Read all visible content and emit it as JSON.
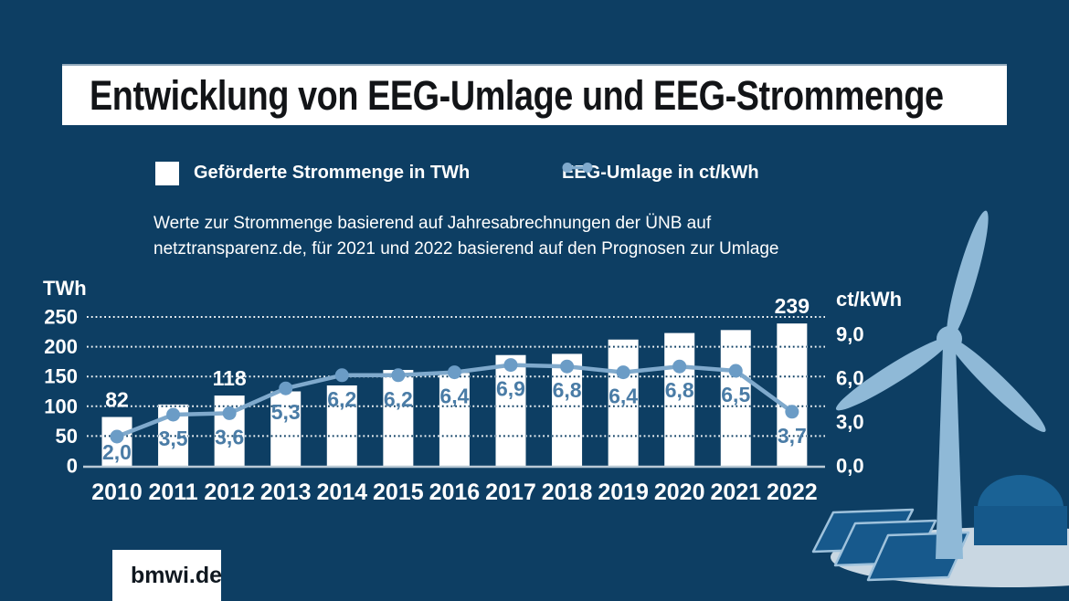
{
  "title": "Entwicklung von EEG-Umlage und EEG-Strommenge",
  "legend": [
    {
      "label": "Geförderte Strommenge in TWh",
      "swatch": "white-square"
    },
    {
      "label": "EEG-Umlage in ct/kWh",
      "swatch": "line-with-dots"
    }
  ],
  "note": {
    "line1": "Werte zur Strommenge basierend auf Jahresabrechnungen der ÜNB auf",
    "line2": "netztransparenz.de, für 2021 und 2022 basierend auf den Prognosen zur Umlage"
  },
  "brand": "bmwi.de",
  "colors": {
    "background": "#0d3e63",
    "bar": "#ffffff",
    "line": "#7fa9cc",
    "dot": "#6b9cc6",
    "value_label": "#4a7ca6",
    "bar_label": "#ffffff",
    "axis_text": "#ffffff",
    "gridline_light": "#ffffff",
    "gridline_dark": "#0d3e63",
    "baseline": "#b9c9d5",
    "illustration_light": "#8fb9d7",
    "illustration_mid": "#17598c",
    "dome_top": "#1a6295",
    "dome_base": "#15588a",
    "panel_edge": "#9fc2dc",
    "ground": "#c9d7e2"
  },
  "chart_data": {
    "type": "bar+line combo",
    "categories": [
      "2010",
      "2011",
      "2012",
      "2013",
      "2014",
      "2015",
      "2016",
      "2017",
      "2018",
      "2019",
      "2020",
      "2021",
      "2022"
    ],
    "series": [
      {
        "name": "Geförderte Strommenge in TWh",
        "type": "bar",
        "axis": "left",
        "unit": "TWh",
        "values": [
          82,
          103,
          118,
          125,
          135,
          161,
          156,
          186,
          188,
          212,
          223,
          228,
          239
        ],
        "value_labels": [
          "82",
          "",
          "118",
          "",
          "",
          "",
          "",
          "",
          "",
          "",
          "",
          "",
          "239"
        ]
      },
      {
        "name": "EEG-Umlage in ct/kWh",
        "type": "line",
        "axis": "right",
        "unit": "ct/kWh",
        "values": [
          2.0,
          3.5,
          3.6,
          5.3,
          6.2,
          6.2,
          6.4,
          6.9,
          6.8,
          6.4,
          6.8,
          6.5,
          3.7
        ],
        "value_labels": [
          "2,0",
          "3,5",
          "3,6",
          "5,3",
          "6,2",
          "6,2",
          "6,4",
          "6,9",
          "6,8",
          "6,4",
          "6,8",
          "6,5",
          "3,7"
        ]
      }
    ],
    "left_axis": {
      "label": "TWh",
      "ticks": [
        0,
        50,
        100,
        150,
        200,
        250
      ],
      "range": [
        0,
        250
      ],
      "gridlines": "dotted"
    },
    "right_axis": {
      "label": "ct/kWh",
      "ticks": [
        {
          "value": 0,
          "label": "0,0"
        },
        {
          "value": 3,
          "label": "3,0"
        },
        {
          "value": 6,
          "label": "6,0"
        },
        {
          "value": 9,
          "label": "9,0"
        }
      ],
      "range": [
        0,
        10.2
      ]
    },
    "legend_position": "top"
  }
}
